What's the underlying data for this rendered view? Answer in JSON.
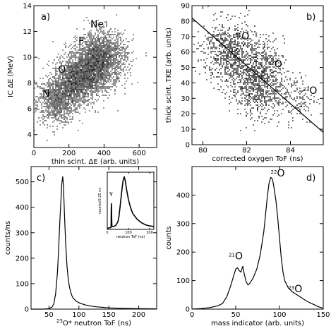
{
  "chart_data": [
    {
      "id": "a",
      "type": "heatmap",
      "panel_label": "a)",
      "xlabel": "thin scint. ΔE (arb. units)",
      "ylabel": "IC ΔE (MeV)",
      "xlim": [
        0,
        700
      ],
      "ylim": [
        3,
        14
      ],
      "xticks": [
        0,
        200,
        400,
        600
      ],
      "yticks": [
        4,
        6,
        8,
        10,
        12,
        14
      ],
      "annotations": [
        {
          "text": "N",
          "x": 70,
          "y": 6.9
        },
        {
          "text": "O",
          "x": 160,
          "y": 8.8
        },
        {
          "text": "F",
          "x": 270,
          "y": 11.0
        },
        {
          "text": "Ne",
          "x": 360,
          "y": 12.3
        }
      ],
      "clusters": [
        {
          "name": "N",
          "cx": 130,
          "cy": 6.6,
          "sx": 55,
          "sy": 0.9,
          "n": 900
        },
        {
          "name": "O",
          "cx": 230,
          "cy": 8.0,
          "sx": 60,
          "sy": 0.9,
          "n": 1300
        },
        {
          "name": "F",
          "cx": 310,
          "cy": 8.9,
          "sx": 65,
          "sy": 1.0,
          "n": 1200
        },
        {
          "name": "Ne",
          "cx": 390,
          "cy": 10.0,
          "sx": 70,
          "sy": 1.0,
          "n": 1700
        }
      ]
    },
    {
      "id": "b",
      "type": "heatmap",
      "panel_label": "b)",
      "xlabel": "corrected oxygen ToF (ns)",
      "ylabel": "thick scint. TKE (arb. units)",
      "xlim": [
        79.5,
        85.5
      ],
      "ylim": [
        0,
        90
      ],
      "xticks": [
        80,
        82,
        84
      ],
      "yticks": [
        0,
        10,
        20,
        30,
        40,
        50,
        60,
        70,
        80,
        90
      ],
      "line": {
        "x": [
          79.5,
          85.5
        ],
        "y": [
          82,
          8
        ]
      },
      "annotations": [
        {
          "sup": "21",
          "text": "O",
          "x": 81.8,
          "y": 68
        },
        {
          "sup": "22",
          "text": "O",
          "x": 83.3,
          "y": 50
        },
        {
          "sup": "23",
          "text": "O",
          "x": 84.9,
          "y": 33
        }
      ],
      "clusters": [
        {
          "name": "21O",
          "cx": 81.2,
          "cy": 60,
          "sx": 0.6,
          "sy": 10,
          "n": 700
        },
        {
          "name": "22O",
          "cx": 82.5,
          "cy": 42,
          "sx": 0.6,
          "sy": 12,
          "n": 1000
        },
        {
          "name": "23O",
          "cx": 84.2,
          "cy": 30,
          "sx": 0.5,
          "sy": 8,
          "n": 150
        }
      ]
    },
    {
      "id": "c",
      "type": "line",
      "panel_label": "c)",
      "xlabel": "O* neutron ToF (ns)",
      "xlabel_sup": "23",
      "ylabel": "counts/ns",
      "xlim": [
        20,
        230
      ],
      "ylim": [
        0,
        560
      ],
      "xticks": [
        50,
        100,
        150,
        200
      ],
      "yticks": [
        0,
        100,
        200,
        300,
        400,
        500
      ],
      "series": [
        {
          "x": [
            20,
            40,
            50,
            55,
            58,
            61,
            64,
            66,
            68,
            70,
            71,
            72,
            73,
            74,
            75,
            76,
            78,
            80,
            82,
            84,
            86,
            88,
            90,
            95,
            100,
            110,
            120,
            130,
            140,
            150,
            170,
            200,
            230
          ],
          "values": [
            0,
            0,
            2,
            8,
            20,
            60,
            140,
            230,
            340,
            430,
            480,
            505,
            520,
            490,
            430,
            360,
            250,
            170,
            120,
            90,
            70,
            55,
            45,
            32,
            25,
            17,
            12,
            9,
            7,
            5,
            3,
            2,
            1
          ]
        }
      ]
    },
    {
      "id": "c-inset",
      "type": "line",
      "xlabel": "neutron ToF (ns)",
      "ylabel": "counts/0.25 ns",
      "xlim": [
        0,
        220
      ],
      "ylim": [
        0,
        1
      ],
      "xticks": [
        0,
        100,
        200
      ],
      "annotations": [
        {
          "text": "γ",
          "x": 18,
          "y": 0.6
        }
      ],
      "series": [
        {
          "x": [
            0,
            15,
            18,
            19,
            20,
            21,
            22,
            25,
            30,
            40,
            50,
            55,
            60,
            65,
            70,
            75,
            80,
            85,
            90,
            100,
            110,
            120,
            140,
            160,
            180,
            200,
            220
          ],
          "values": [
            0.02,
            0.03,
            0.04,
            0.38,
            0.45,
            0.15,
            0.05,
            0.05,
            0.05,
            0.07,
            0.13,
            0.22,
            0.38,
            0.55,
            0.72,
            0.86,
            0.92,
            0.85,
            0.72,
            0.52,
            0.38,
            0.28,
            0.18,
            0.12,
            0.08,
            0.06,
            0.05
          ]
        }
      ]
    },
    {
      "id": "d",
      "type": "line",
      "panel_label": "d)",
      "xlabel": "mass indicator (arb. units)",
      "ylabel": "counts",
      "xlim": [
        0,
        150
      ],
      "ylim": [
        0,
        500
      ],
      "xticks": [
        0,
        50,
        100,
        150
      ],
      "yticks": [
        0,
        100,
        200,
        300,
        400
      ],
      "annotations": [
        {
          "sup": "21",
          "text": "O",
          "x": 50,
          "y": 175
        },
        {
          "sup": "22",
          "text": "O",
          "x": 98,
          "y": 465
        },
        {
          "sup": "23",
          "text": "O",
          "x": 118,
          "y": 60
        }
      ],
      "series": [
        {
          "x": [
            0,
            10,
            20,
            30,
            35,
            40,
            44,
            48,
            50,
            52,
            54,
            56,
            58,
            60,
            62,
            64,
            66,
            70,
            74,
            78,
            82,
            84,
            86,
            88,
            90,
            91,
            92,
            93,
            94,
            96,
            98,
            100,
            102,
            104,
            106,
            110,
            115,
            120,
            125,
            130,
            135,
            140,
            145,
            150
          ],
          "values": [
            0,
            2,
            5,
            12,
            20,
            45,
            80,
            120,
            140,
            145,
            135,
            130,
            150,
            120,
            95,
            85,
            90,
            110,
            140,
            190,
            270,
            330,
            390,
            440,
            462,
            460,
            455,
            440,
            420,
            380,
            320,
            250,
            180,
            130,
            100,
            75,
            60,
            50,
            40,
            30,
            22,
            15,
            8,
            3
          ]
        }
      ]
    }
  ]
}
